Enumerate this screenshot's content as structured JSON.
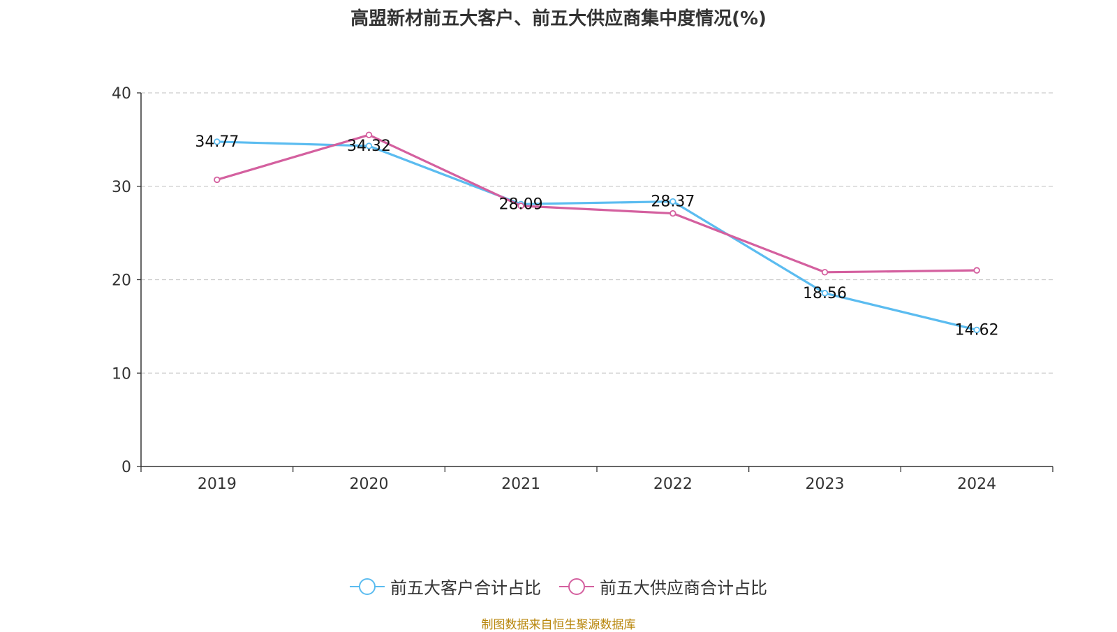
{
  "title": "高盟新材前五大客户、前五大供应商集中度情况(%)",
  "source": "制图数据来自恒生聚源数据库",
  "chart_data": {
    "type": "line",
    "categories": [
      "2019",
      "2020",
      "2021",
      "2022",
      "2023",
      "2024"
    ],
    "yticks": [
      "0",
      "10",
      "20",
      "30",
      "40"
    ],
    "ylim": [
      0,
      40
    ],
    "grid": true,
    "legend_position": "bottom-center",
    "series": [
      {
        "name": "前五大客户合计占比",
        "color": "#5bbcf0",
        "values": [
          34.77,
          34.32,
          28.09,
          28.37,
          18.56,
          14.62
        ],
        "labels": [
          "34.77",
          "34.32",
          "28.09",
          "28.37",
          "18.56",
          "14.62"
        ]
      },
      {
        "name": "前五大供应商合计占比",
        "color": "#d4609f",
        "values": [
          30.7,
          35.5,
          27.9,
          27.1,
          20.8,
          21.0
        ]
      }
    ]
  }
}
